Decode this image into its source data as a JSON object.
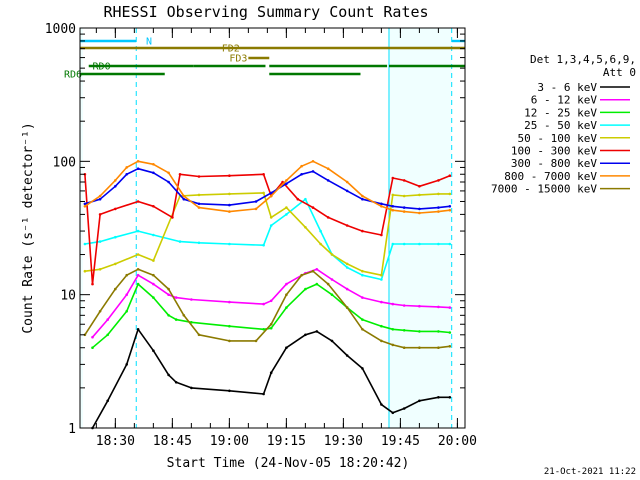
{
  "chart_data": {
    "type": "line",
    "title": "RHESSI Observing Summary Count Rates",
    "xlabel": "Start Time (24-Nov-05 18:20:42)",
    "ylabel": "Count Rate (s⁻¹ detector⁻¹)",
    "y_scale": "log",
    "ylim": [
      1,
      1000
    ],
    "x_start": "18:20:42",
    "x_end": "20:02:00",
    "x_ticks": [
      "18:30",
      "18:45",
      "19:00",
      "19:15",
      "19:30",
      "19:45",
      "20:00"
    ],
    "y_ticks": [
      "1",
      "10",
      "100",
      "1000"
    ],
    "legend_header": [
      "Det 1,3,4,5,6,9,",
      "Att 0"
    ],
    "footer_date": "21-Oct-2021 11:22",
    "grid": false,
    "legend_position": "right",
    "shading": [
      {
        "start": "18:20:42",
        "end": "18:21:30",
        "color": "#00ffff"
      },
      {
        "start": "19:42:00",
        "end": "19:58:30",
        "color": "#00ffff"
      }
    ],
    "night_boundaries_solid": [
      "18:20:42",
      "19:42:00"
    ],
    "night_boundaries_dashed": [
      "18:35:30",
      "19:58:30"
    ],
    "flags": [
      {
        "label": "N",
        "color": "#00c8ff",
        "level": 1,
        "segments": [
          [
            "18:20:42",
            "18:35:30"
          ],
          [
            "19:58:30",
            "20:02:00"
          ]
        ]
      },
      {
        "label": "FD2",
        "color": "#8b7a00",
        "level": 2,
        "segments": [
          [
            "18:20:42",
            "20:02:00"
          ]
        ]
      },
      {
        "label": "FD3",
        "color": "#8b7a00",
        "level": 3,
        "segments": [
          [
            "19:05:00",
            "19:10:30"
          ]
        ]
      },
      {
        "label": "RD0",
        "color": "#007800",
        "level": 4,
        "segments": [
          [
            "18:23:00",
            "18:50:30"
          ],
          [
            "18:50:30",
            "19:09:30"
          ],
          [
            "19:10:30",
            "19:41:30"
          ],
          [
            "19:42:00",
            "20:02:00"
          ]
        ]
      },
      {
        "label": "RD6",
        "color": "#007800",
        "level": 5,
        "segments": [
          [
            "18:20:42",
            "18:43:00"
          ],
          [
            "19:10:30",
            "19:34:30"
          ]
        ]
      }
    ],
    "series": [
      {
        "name": "3 - 6 keV",
        "color": "#000000",
        "x": [
          "18:24",
          "18:28",
          "18:33",
          "18:36",
          "18:40",
          "18:44",
          "18:46",
          "18:50",
          "19:00",
          "19:09",
          "19:11",
          "19:15",
          "19:20",
          "19:23",
          "19:27",
          "19:31",
          "19:35",
          "19:40",
          "19:43",
          "19:46",
          "19:50",
          "19:55",
          "19:58"
        ],
        "y": [
          1.0,
          1.6,
          3.0,
          5.5,
          3.8,
          2.5,
          2.2,
          2.0,
          1.9,
          1.8,
          2.6,
          4.0,
          5.0,
          5.3,
          4.5,
          3.5,
          2.8,
          1.5,
          1.3,
          1.4,
          1.6,
          1.7,
          1.7
        ]
      },
      {
        "name": "6 - 12 keV",
        "color": "#ff00ff",
        "x": [
          "18:24",
          "18:28",
          "18:33",
          "18:36",
          "18:40",
          "18:44",
          "18:46",
          "18:50",
          "19:00",
          "19:09",
          "19:11",
          "19:15",
          "19:20",
          "19:23",
          "19:27",
          "19:31",
          "19:35",
          "19:40",
          "19:43",
          "19:46",
          "19:50",
          "19:55",
          "19:58"
        ],
        "y": [
          4.8,
          6.5,
          10,
          14,
          12,
          10,
          9.5,
          9.2,
          8.8,
          8.5,
          9.0,
          12,
          14.5,
          15.5,
          13,
          11,
          9.5,
          8.8,
          8.5,
          8.3,
          8.2,
          8.1,
          8.0
        ]
      },
      {
        "name": "12 - 25 keV",
        "color": "#00ee00",
        "x": [
          "18:24",
          "18:28",
          "18:33",
          "18:36",
          "18:40",
          "18:44",
          "18:46",
          "18:50",
          "19:00",
          "19:09",
          "19:11",
          "19:15",
          "19:20",
          "19:23",
          "19:27",
          "19:31",
          "19:35",
          "19:40",
          "19:43",
          "19:46",
          "19:50",
          "19:55",
          "19:58"
        ],
        "y": [
          4.0,
          5.0,
          7.5,
          12,
          9.5,
          7.0,
          6.5,
          6.2,
          5.8,
          5.5,
          5.6,
          8.0,
          11,
          12,
          10,
          8.0,
          6.5,
          5.8,
          5.5,
          5.4,
          5.3,
          5.3,
          5.2
        ]
      },
      {
        "name": "25 - 50 keV",
        "color": "#00ffff",
        "x": [
          "18:22",
          "18:26",
          "18:30",
          "18:36",
          "18:40",
          "18:47",
          "18:52",
          "19:00",
          "19:09",
          "19:11",
          "19:15",
          "19:20",
          "19:24",
          "19:27",
          "19:31",
          "19:35",
          "19:40",
          "19:43",
          "19:46",
          "19:50",
          "19:55",
          "19:58"
        ],
        "y": [
          24,
          25,
          27,
          30,
          28,
          25,
          24.5,
          24,
          23.5,
          33,
          40,
          52,
          30,
          20,
          16,
          14,
          13,
          24,
          24,
          24,
          24,
          24
        ]
      },
      {
        "name": "50 - 100 keV",
        "color": "#cccc00",
        "x": [
          "18:22",
          "18:26",
          "18:30",
          "18:36",
          "18:40",
          "18:47",
          "18:52",
          "19:00",
          "19:09",
          "19:11",
          "19:15",
          "19:20",
          "19:24",
          "19:27",
          "19:31",
          "19:35",
          "19:40",
          "19:43",
          "19:46",
          "19:50",
          "19:55",
          "19:58"
        ],
        "y": [
          15,
          15.5,
          17,
          20,
          18,
          55,
          56,
          57,
          58,
          38,
          45,
          32,
          24,
          20,
          17,
          15,
          14,
          56,
          55,
          56,
          57,
          57
        ]
      },
      {
        "name": "100 - 300 keV",
        "color": "#ee0000",
        "x": [
          "18:22",
          "18:24",
          "18:26",
          "18:30",
          "18:36",
          "18:40",
          "18:45",
          "18:47",
          "18:52",
          "19:00",
          "19:09",
          "19:11",
          "19:14",
          "19:18",
          "19:22",
          "19:26",
          "19:31",
          "19:35",
          "19:40",
          "19:43",
          "19:46",
          "19:50",
          "19:55",
          "19:58"
        ],
        "y": [
          80,
          12,
          40,
          44,
          50,
          46,
          38,
          80,
          77,
          78,
          80,
          55,
          70,
          52,
          45,
          38,
          33,
          30,
          28,
          75,
          72,
          65,
          72,
          78
        ]
      },
      {
        "name": "300 - 800 keV",
        "color": "#0000ee",
        "x": [
          "18:22",
          "18:26",
          "18:30",
          "18:33",
          "18:36",
          "18:40",
          "18:44",
          "18:48",
          "18:52",
          "19:00",
          "19:07",
          "19:11",
          "19:15",
          "19:19",
          "19:22",
          "19:26",
          "19:31",
          "19:35",
          "19:40",
          "19:43",
          "19:46",
          "19:50",
          "19:55",
          "19:58"
        ],
        "y": [
          48,
          52,
          65,
          80,
          88,
          82,
          70,
          52,
          48,
          47,
          50,
          58,
          68,
          80,
          84,
          72,
          60,
          52,
          48,
          46,
          45,
          44,
          45,
          46
        ]
      },
      {
        "name": "800 - 7000 keV",
        "color": "#ff8800",
        "x": [
          "18:22",
          "18:26",
          "18:30",
          "18:33",
          "18:36",
          "18:40",
          "18:44",
          "18:48",
          "18:52",
          "19:00",
          "19:07",
          "19:11",
          "19:15",
          "19:19",
          "19:22",
          "19:26",
          "19:31",
          "19:35",
          "19:40",
          "19:43",
          "19:46",
          "19:50",
          "19:55",
          "19:58"
        ],
        "y": [
          46,
          55,
          72,
          90,
          100,
          95,
          82,
          55,
          45,
          42,
          44,
          55,
          72,
          92,
          100,
          88,
          70,
          55,
          46,
          43,
          42,
          41,
          42,
          43
        ]
      },
      {
        "name": "7000 - 15000 keV",
        "color": "#8b7a00",
        "x": [
          "18:22",
          "18:26",
          "18:30",
          "18:33",
          "18:36",
          "18:40",
          "18:44",
          "18:48",
          "18:52",
          "19:00",
          "19:07",
          "19:11",
          "19:15",
          "19:19",
          "19:22",
          "19:26",
          "19:31",
          "19:35",
          "19:40",
          "19:43",
          "19:46",
          "19:50",
          "19:55",
          "19:58"
        ],
        "y": [
          5.0,
          7.5,
          11,
          14,
          15.5,
          14,
          11,
          7.0,
          5.0,
          4.5,
          4.5,
          6.0,
          10,
          14,
          15,
          12,
          8.0,
          5.5,
          4.5,
          4.2,
          4.0,
          4.0,
          4.0,
          4.1
        ]
      }
    ]
  }
}
